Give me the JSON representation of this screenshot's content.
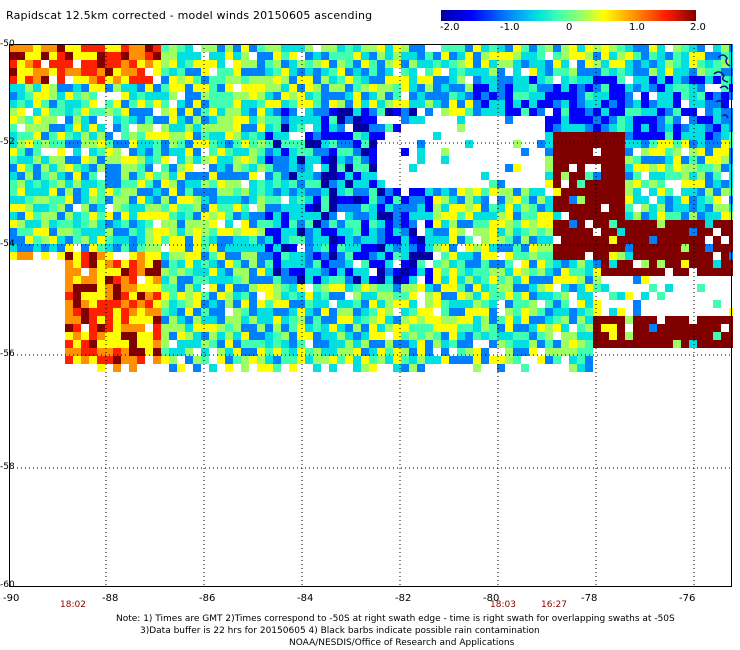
{
  "title": "Rapidscat 12.5km corrected - model winds 20150605 ascending",
  "colorbar": {
    "labels": [
      "-2.0",
      "-1.0",
      "0",
      "1.0",
      "2.0"
    ],
    "colors": [
      "#0000a0",
      "#0000ff",
      "#0080ff",
      "#00e0e0",
      "#40ffb0",
      "#a0ff60",
      "#ffff00",
      "#ff9000",
      "#ff2000",
      "#800000"
    ]
  },
  "map": {
    "lat_labels": [
      "-50",
      "-52",
      "-54",
      "-56",
      "-58",
      "-60"
    ],
    "lon_labels": [
      "-90",
      "-88",
      "-86",
      "-84",
      "-82",
      "-80",
      "-78",
      "-76"
    ],
    "times": [
      "18:02",
      "18:03",
      "16:27"
    ],
    "lat_range": [
      -60,
      -50
    ],
    "lon_range": [
      -90,
      -75.2
    ]
  },
  "notes": {
    "line1": "Note: 1) Times are GMT 2)Times correspond to -50S at right swath edge - time is right swath for overlapping swaths at -50S",
    "line2": "3)Data buffer is 22 hrs for 20150605 4) Black barbs indicate possible rain contamination",
    "line3": "NOAA/NESDIS/Office of Research and Applications"
  }
}
